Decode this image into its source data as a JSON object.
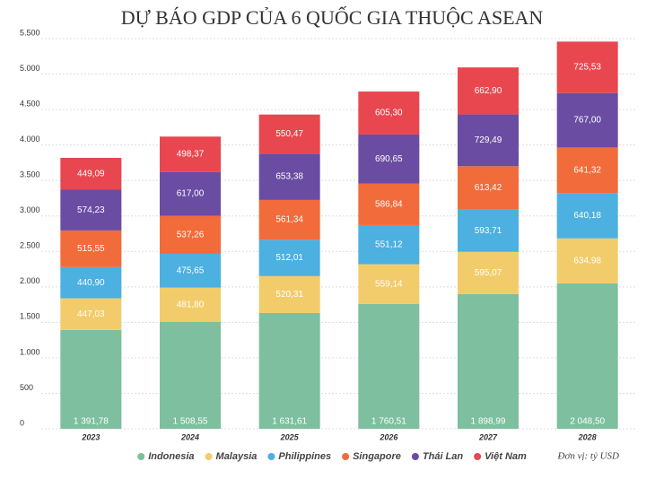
{
  "chart_data": {
    "type": "stacked_bar",
    "title": "DỰ BÁO GDP CỦA 6 QUỐC GIA THUỘC ASEAN",
    "note": "Đơn vị: tỷ USD",
    "categories": [
      "2023",
      "2024",
      "2025",
      "2026",
      "2027",
      "2028"
    ],
    "series": [
      {
        "name": "Indonesia",
        "color": "#7dbf9e",
        "values": [
          1391.78,
          1508.55,
          1631.61,
          1760.51,
          1898.99,
          2048.5
        ],
        "value_labels": [
          "1 391,78",
          "1 508,55",
          "1 631,61",
          "1 760,51",
          "1 898,99",
          "2 048,50"
        ]
      },
      {
        "name": "Malaysia",
        "color": "#f2cc6b",
        "values": [
          447.03,
          481.8,
          520.31,
          559.14,
          595.07,
          634.98
        ],
        "value_labels": [
          "447,03",
          "481,80",
          "520,31",
          "559,14",
          "595,07",
          "634,98"
        ]
      },
      {
        "name": "Philippines",
        "color": "#4cb0e0",
        "values": [
          440.9,
          475.65,
          512.01,
          551.12,
          593.71,
          640.18
        ],
        "value_labels": [
          "440,90",
          "475,65",
          "512,01",
          "551,12",
          "593,71",
          "640,18"
        ]
      },
      {
        "name": "Singapore",
        "color": "#f26b3a",
        "values": [
          515.55,
          537.26,
          561.34,
          586.84,
          613.42,
          641.32
        ],
        "value_labels": [
          "515,55",
          "537,26",
          "561,34",
          "586,84",
          "613,42",
          "641,32"
        ]
      },
      {
        "name": "Thái Lan",
        "color": "#6a4ca3",
        "values": [
          574.23,
          617.0,
          653.38,
          690.65,
          729.49,
          767.0
        ],
        "value_labels": [
          "574,23",
          "617,00",
          "653,38",
          "690,65",
          "729,49",
          "767,00"
        ]
      },
      {
        "name": "Việt Nam",
        "color": "#e8474f",
        "values": [
          449.09,
          498.37,
          550.47,
          605.3,
          662.9,
          725.53
        ],
        "value_labels": [
          "449,09",
          "498,37",
          "550,47",
          "605,30",
          "662,90",
          "725,53"
        ]
      }
    ],
    "ylim": [
      0,
      5500
    ],
    "yticks": [
      0,
      500,
      {
        "value": 1000,
        "label": "1.000"
      },
      {
        "value": 1500,
        "label": "1.500"
      },
      {
        "value": 2000,
        "label": "2.000"
      },
      {
        "value": 2500,
        "label": "2.500"
      },
      {
        "value": 3000,
        "label": "3.000"
      },
      {
        "value": 3500,
        "label": "3.500"
      },
      {
        "value": 4000,
        "label": "4.000"
      },
      {
        "value": 4500,
        "label": "4.500"
      },
      {
        "value": 5000,
        "label": "5.000"
      },
      {
        "value": 5500,
        "label": "5.500"
      }
    ],
    "grid": true
  }
}
